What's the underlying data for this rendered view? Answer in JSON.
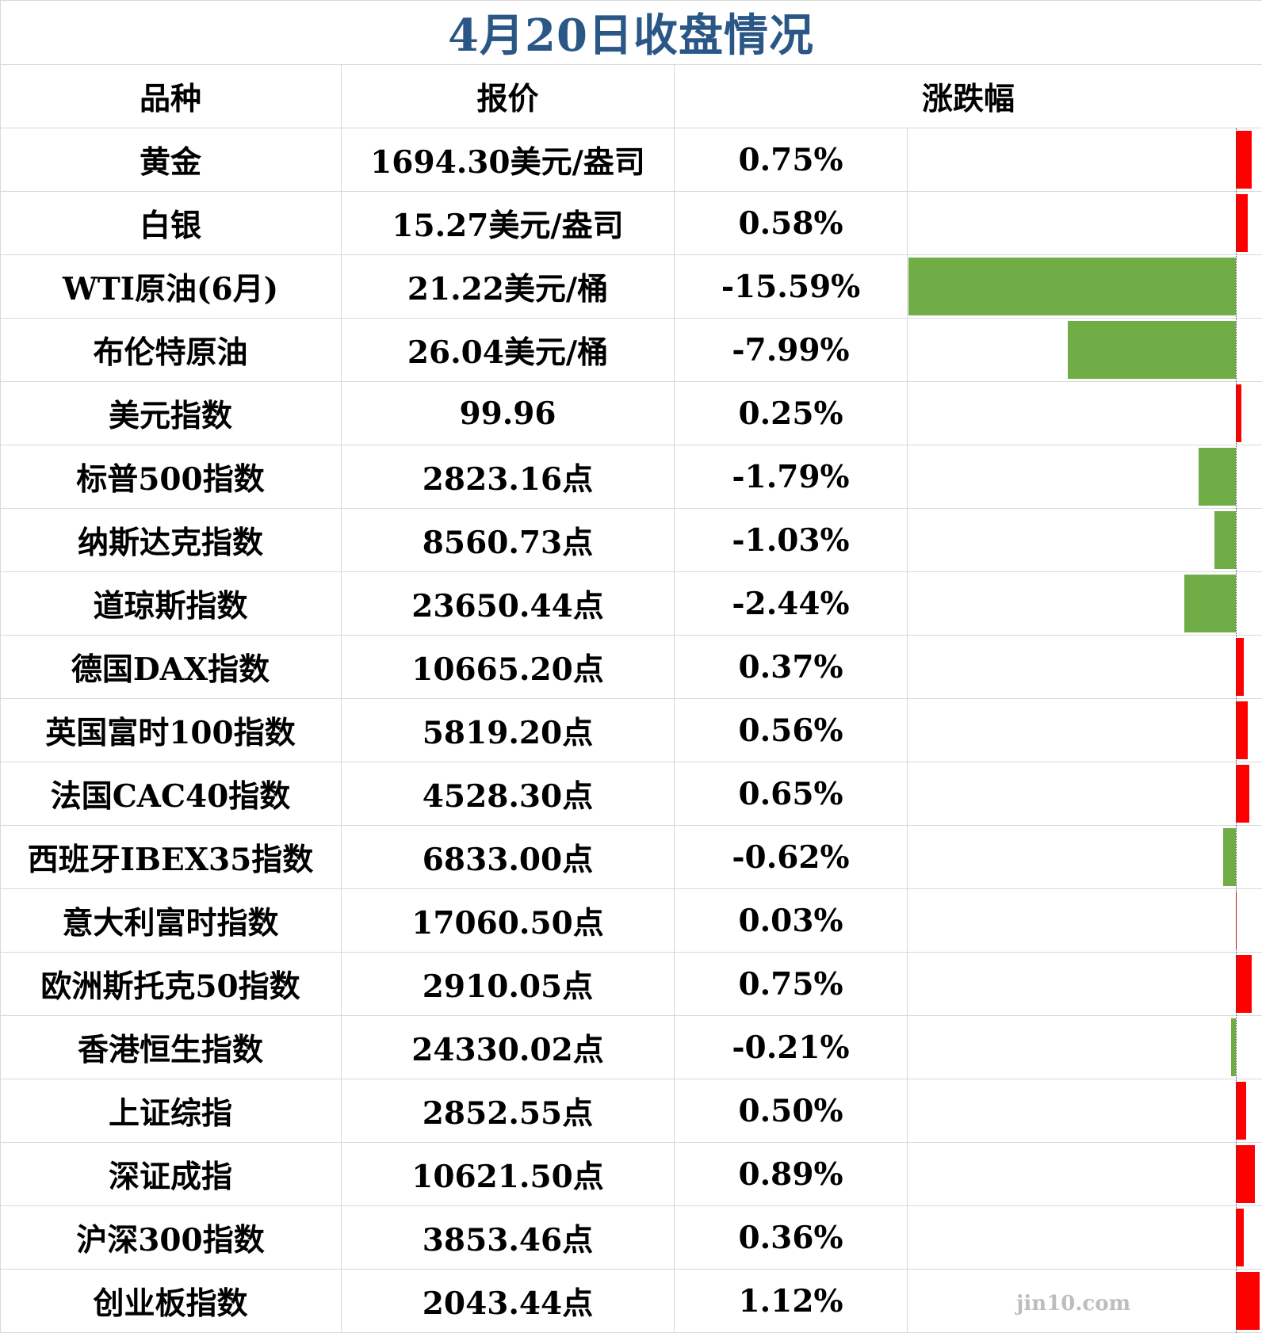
{
  "colors": {
    "title": "#2a5785",
    "up": "#ff0000",
    "down": "#70ad47",
    "grid": "#d9d9d9"
  },
  "watermark": "jin10.com",
  "chart_data": {
    "type": "table",
    "title": "4月20日收盘情况",
    "columns": [
      "品种",
      "报价",
      "涨跌幅"
    ],
    "rows": [
      {
        "name": "黄金",
        "price": "1694.30美元/盎司",
        "change": "0.75%",
        "value": 0.75
      },
      {
        "name": "白银",
        "price": "15.27美元/盎司",
        "change": "0.58%",
        "value": 0.58
      },
      {
        "name": "WTI原油(6月)",
        "price": "21.22美元/桶",
        "change": "-15.59%",
        "value": -15.59
      },
      {
        "name": "布伦特原油",
        "price": "26.04美元/桶",
        "change": "-7.99%",
        "value": -7.99
      },
      {
        "name": "美元指数",
        "price": "99.96",
        "change": "0.25%",
        "value": 0.25
      },
      {
        "name": "标普500指数",
        "price": "2823.16点",
        "change": "-1.79%",
        "value": -1.79
      },
      {
        "name": "纳斯达克指数",
        "price": "8560.73点",
        "change": "-1.03%",
        "value": -1.03
      },
      {
        "name": "道琼斯指数",
        "price": "23650.44点",
        "change": "-2.44%",
        "value": -2.44
      },
      {
        "name": "德国DAX指数",
        "price": "10665.20点",
        "change": "0.37%",
        "value": 0.37
      },
      {
        "name": "英国富时100指数",
        "price": "5819.20点",
        "change": "0.56%",
        "value": 0.56
      },
      {
        "name": "法国CAC40指数",
        "price": "4528.30点",
        "change": "0.65%",
        "value": 0.65
      },
      {
        "name": "西班牙IBEX35指数",
        "price": "6833.00点",
        "change": "-0.62%",
        "value": -0.62
      },
      {
        "name": "意大利富时指数",
        "price": "17060.50点",
        "change": "0.03%",
        "value": 0.03
      },
      {
        "name": "欧洲斯托克50指数",
        "price": "2910.05点",
        "change": "0.75%",
        "value": 0.75
      },
      {
        "name": "香港恒生指数",
        "price": "24330.02点",
        "change": "-0.21%",
        "value": -0.21
      },
      {
        "name": "上证综指",
        "price": "2852.55点",
        "change": "0.50%",
        "value": 0.5
      },
      {
        "name": "深证成指",
        "price": "10621.50点",
        "change": "0.89%",
        "value": 0.89
      },
      {
        "name": "沪深300指数",
        "price": "3853.46点",
        "change": "0.36%",
        "value": 0.36
      },
      {
        "name": "创业板指数",
        "price": "2043.44点",
        "change": "1.12%",
        "value": 1.12
      }
    ]
  }
}
